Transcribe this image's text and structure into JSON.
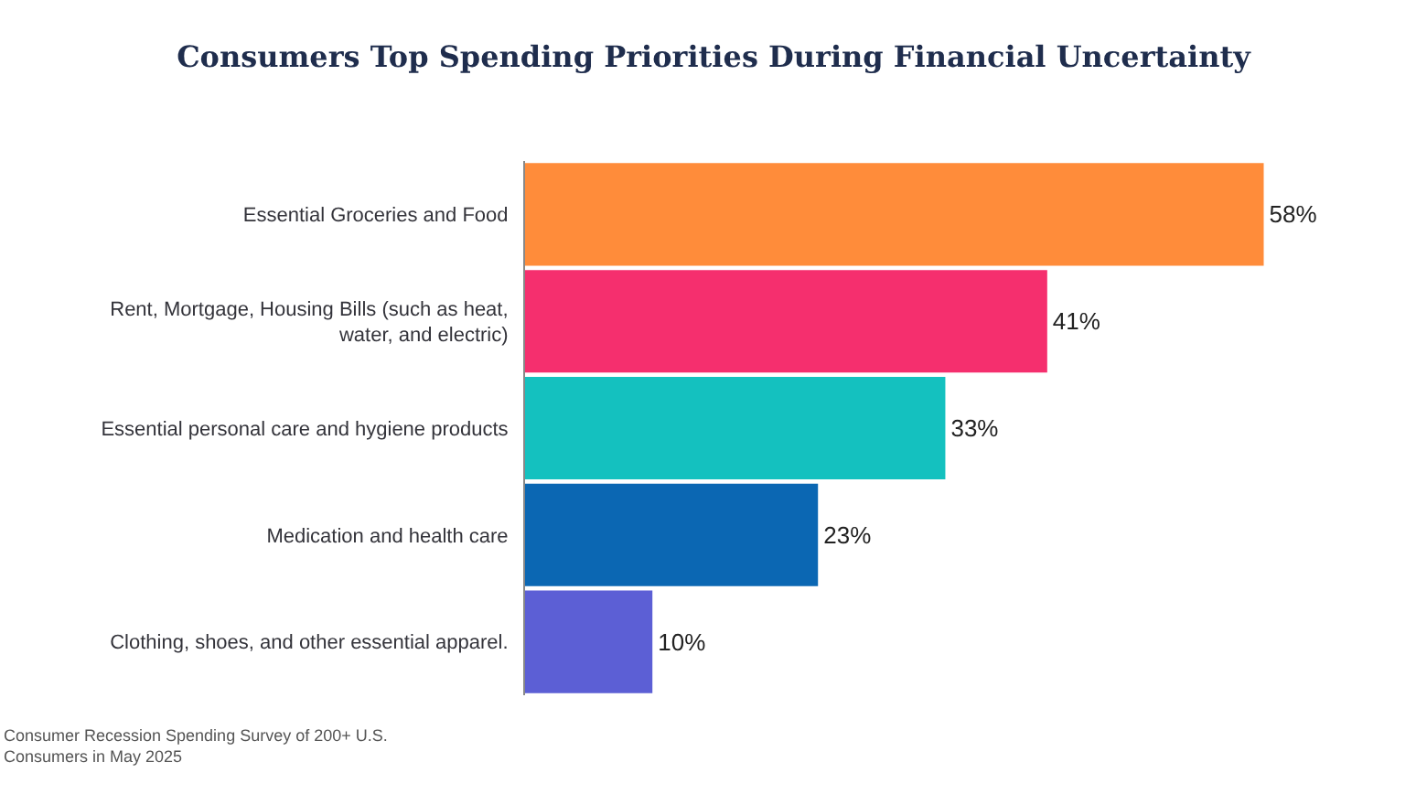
{
  "chart_data": {
    "type": "bar",
    "orientation": "horizontal",
    "title": "Consumers Top Spending Priorities During Financial Uncertainty",
    "categories": [
      "Essential Groceries and Food",
      "Rent, Mortgage, Housing Bills (such as heat, water, and electric)",
      "Essential personal care and hygiene products",
      "Medication and health care",
      "Clothing, shoes, and other essential apparel."
    ],
    "values": [
      58,
      41,
      33,
      23,
      10
    ],
    "colors": [
      "#ff8c3a",
      "#f52f6e",
      "#14c1bf",
      "#0b67b3",
      "#5c5fd5"
    ],
    "value_labels": [
      "58%",
      "41%",
      "33%",
      "23%",
      "10%"
    ],
    "tick_labels": "y",
    "legend": false,
    "annotations": [
      "Consumer Recession Spending Survey of 200+ U.S. Consumers in May 2025"
    ]
  }
}
